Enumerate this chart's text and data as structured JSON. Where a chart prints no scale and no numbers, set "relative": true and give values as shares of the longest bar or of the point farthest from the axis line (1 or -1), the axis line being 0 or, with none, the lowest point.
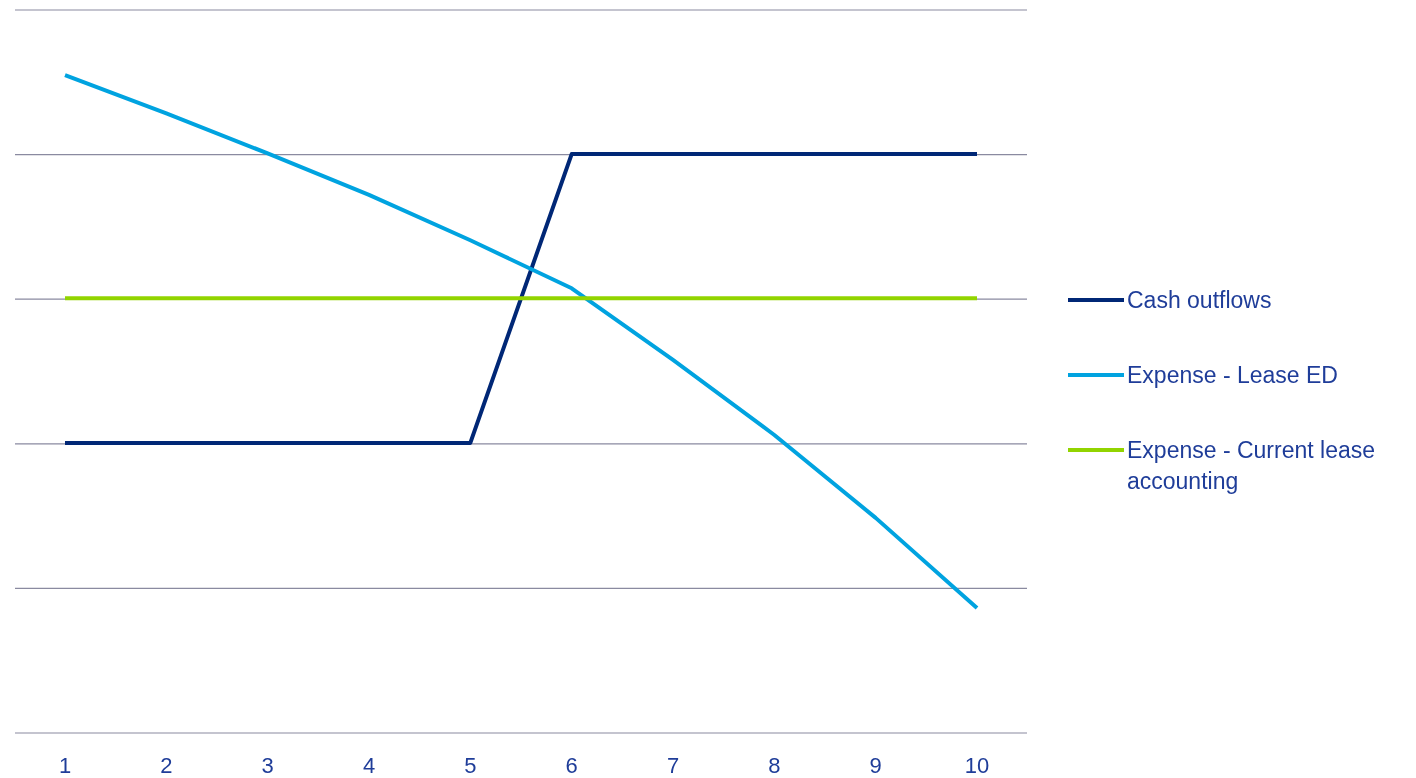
{
  "chart_data": {
    "type": "line",
    "relative": true,
    "categories": [
      "1",
      "2",
      "3",
      "4",
      "5",
      "6",
      "7",
      "8",
      "9",
      "10"
    ],
    "series": [
      {
        "name": "Cash outflows",
        "color": "#002776",
        "values": [
          0.441,
          0.441,
          0.441,
          0.441,
          0.441,
          0.88,
          0.88,
          0.88,
          0.88,
          0.88
        ]
      },
      {
        "name": "Expense - Lease ED",
        "color": "#00a3e0",
        "values": [
          1,
          0.942,
          0.881,
          0.818,
          0.749,
          0.676,
          0.567,
          0.453,
          0.327,
          0.19
        ]
      },
      {
        "name": "Expense - Current lease accounting",
        "color": "#92d400",
        "values": [
          0.661,
          0.661,
          0.661,
          0.661,
          0.661,
          0.661,
          0.661,
          0.661,
          0.661,
          0.661
        ]
      }
    ],
    "grid": "y",
    "legend": "right",
    "marker": "none",
    "line_style": "solid"
  }
}
